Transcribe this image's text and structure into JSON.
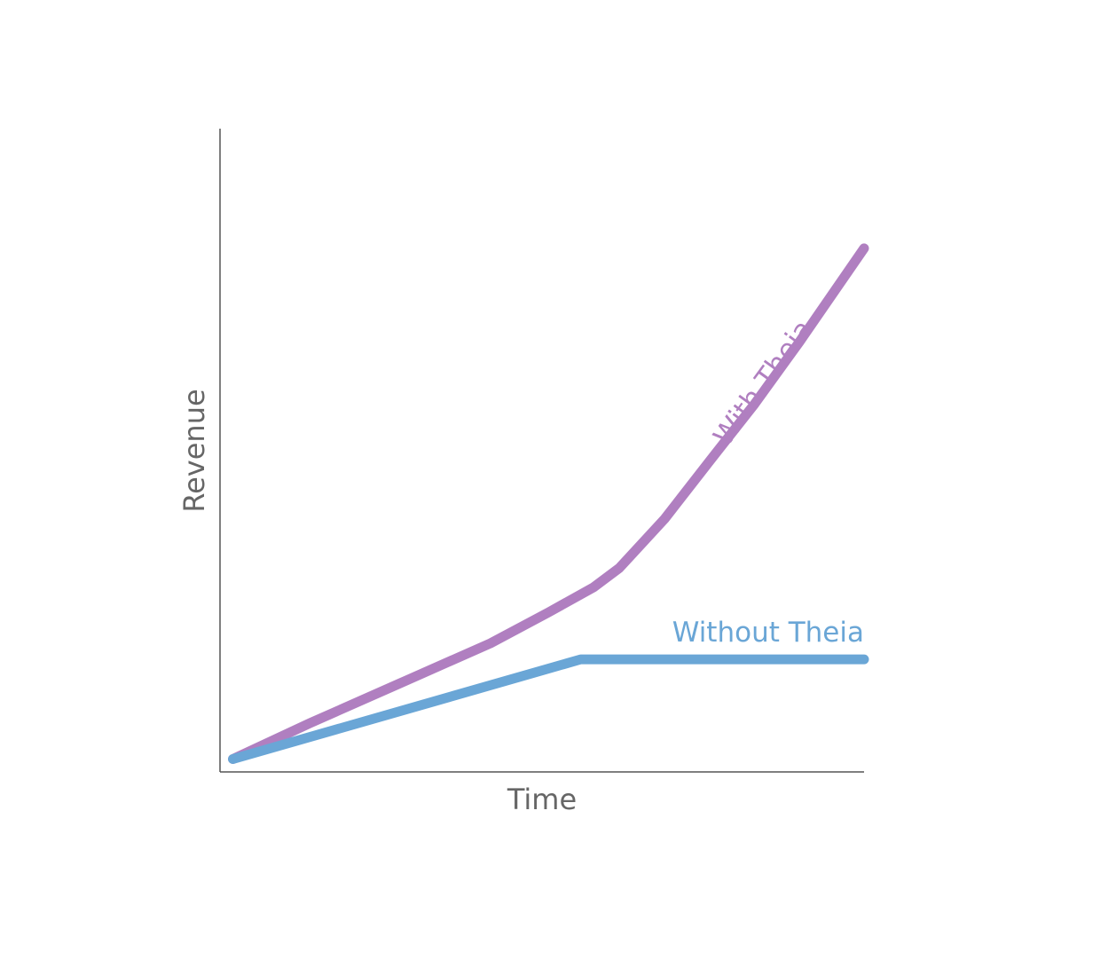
{
  "chart_data": {
    "type": "line",
    "x_label": "Time",
    "y_label": "Revenue",
    "xlim": [
      0,
      100
    ],
    "ylim": [
      0,
      100
    ],
    "series": [
      {
        "name": "With Theia",
        "color": "#b07fc0",
        "x": [
          2,
          14,
          28,
          42,
          51,
          58,
          62,
          69,
          76,
          83,
          90,
          100
        ],
        "values": [
          2,
          7.6,
          13.8,
          20,
          24.8,
          28.7,
          31.7,
          39.3,
          48.3,
          57.2,
          66.9,
          81.4
        ]
      },
      {
        "name": "Without Theia",
        "color": "#6aa6d6",
        "x": [
          2,
          56,
          100
        ],
        "values": [
          2,
          17.5,
          17.5
        ]
      }
    ]
  }
}
